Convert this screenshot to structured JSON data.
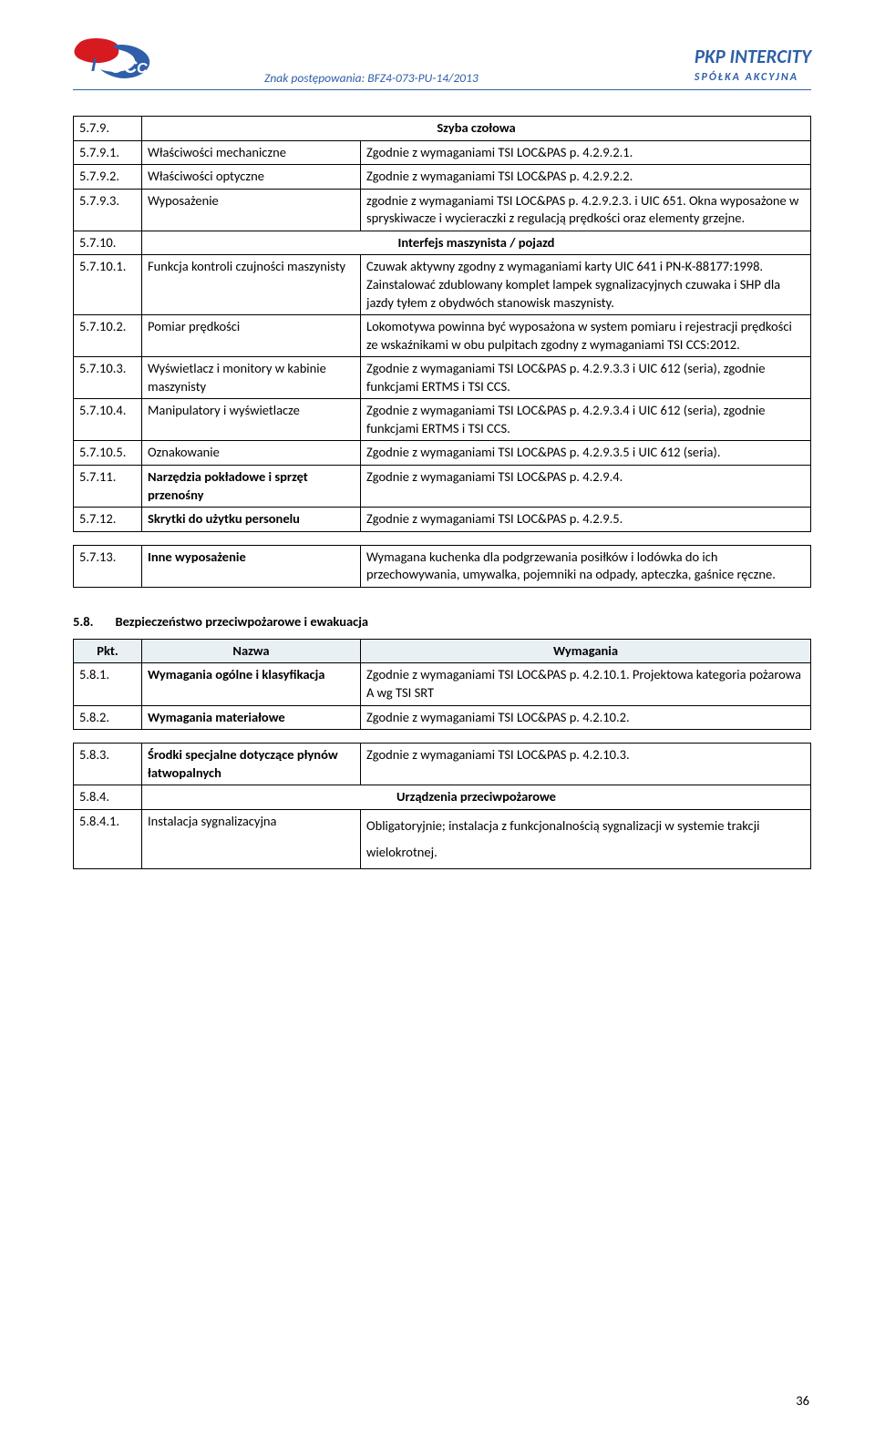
{
  "header": {
    "znak": "Znak postępowania: BFZ4-073-PU-14/2013",
    "brand_line1": "PKP INTERCITY",
    "brand_line2": "SPÓŁKA  AKCYJNA"
  },
  "logo_colors": {
    "red": "#d71920",
    "blue": "#2e5fa8"
  },
  "table1": [
    {
      "pkt": "5.7.9.",
      "title": "Szyba czołowa",
      "desc": "",
      "bold_title": true,
      "title_center": true,
      "span": true
    },
    {
      "pkt": "5.7.9.1.",
      "title": "Właściwości mechaniczne",
      "desc": "Zgodnie z wymaganiami TSI LOC&PAS p. 4.2.9.2.1."
    },
    {
      "pkt": "5.7.9.2.",
      "title": "Właściwości optyczne",
      "desc": "Zgodnie z wymaganiami TSI LOC&PAS p. 4.2.9.2.2."
    },
    {
      "pkt": "5.7.9.3.",
      "title": "Wyposażenie",
      "desc": "zgodnie z wymaganiami TSI LOC&PAS p. 4.2.9.2.3. i UIC 651. Okna wyposażone w spryskiwacze i wycieraczki z regulacją prędkości oraz elementy grzejne."
    },
    {
      "pkt": "5.7.10.",
      "title": "Interfejs maszynista / pojazd",
      "desc": "",
      "bold_title": true,
      "title_center": true,
      "span": true
    },
    {
      "pkt": "5.7.10.1.",
      "title": "Funkcja kontroli czujności maszynisty",
      "desc": "Czuwak aktywny zgodny z wymaganiami karty UIC 641 i PN-K-88177:1998.\nZainstalować zdublowany komplet lampek sygnalizacyjnych czuwaka i SHP dla jazdy tyłem z obydwóch stanowisk maszynisty."
    },
    {
      "pkt": "5.7.10.2.",
      "title": "Pomiar prędkości",
      "desc": "Lokomotywa powinna być wyposażona w system pomiaru i rejestracji prędkości ze wskaźnikami w obu pulpitach  zgodny z wymaganiami TSI CCS:2012."
    },
    {
      "pkt": "5.7.10.3.",
      "title": "Wyświetlacz i monitory w kabinie maszynisty",
      "desc": "Zgodnie z wymaganiami TSI LOC&PAS p. 4.2.9.3.3 i UIC 612 (seria), zgodnie funkcjami ERTMS i TSI CCS."
    },
    {
      "pkt": "5.7.10.4.",
      "title": "Manipulatory i wyświetlacze",
      "desc": "Zgodnie z wymaganiami TSI LOC&PAS p. 4.2.9.3.4 i UIC 612 (seria), zgodnie funkcjami ERTMS i TSI CCS."
    },
    {
      "pkt": "5.7.10.5.",
      "title": "Oznakowanie",
      "desc": "Zgodnie z wymaganiami TSI LOC&PAS p. 4.2.9.3.5 i UIC 612 (seria)."
    },
    {
      "pkt": "5.7.11.",
      "title": "Narzędzia pokładowe i sprzęt przenośny",
      "desc": "Zgodnie z wymaganiami TSI LOC&PAS p. 4.2.9.4.",
      "bold_title": true
    },
    {
      "pkt": "5.7.12.",
      "title": "Skrytki do użytku personelu",
      "desc": "Zgodnie z wymaganiami TSI LOC&PAS p. 4.2.9.5.",
      "bold_title": true
    },
    {
      "pkt": "5.7.13.",
      "title": "Inne wyposażenie",
      "desc": "Wymagana kuchenka dla podgrzewania posiłków i lodówka do ich przechowywania, umywalka, pojemniki na odpady, apteczka, gaśnice ręczne.",
      "bold_title": true,
      "spacer_before": true
    }
  ],
  "section2": {
    "num": "5.8.",
    "title": "Bezpieczeństwo przeciwpożarowe i ewakuacja"
  },
  "table2_header": {
    "c1": "Pkt.",
    "c2": "Nazwa",
    "c3": "Wymagania"
  },
  "table2": [
    {
      "pkt": "5.8.1.",
      "title": "Wymagania ogólne i klasyfikacja",
      "desc": "Zgodnie z wymaganiami TSI LOC&PAS p. 4.2.10.1. Projektowa kategoria pożarowa A wg TSI SRT",
      "bold_title": true
    },
    {
      "pkt": "5.8.2.",
      "title": "Wymagania materiałowe",
      "desc": "Zgodnie z wymaganiami TSI LOC&PAS p. 4.2.10.2.",
      "bold_title": true
    },
    {
      "pkt": "5.8.3.",
      "title": "Środki specjalne dotyczące płynów łatwopalnych",
      "desc": "Zgodnie z wymaganiami TSI LOC&PAS p. 4.2.10.3.",
      "bold_title": true,
      "spacer_before": true
    },
    {
      "pkt": "5.8.4.",
      "title": "Urządzenia przeciwpożarowe",
      "desc": "",
      "bold_title": true,
      "title_center": true,
      "span": true
    },
    {
      "pkt": "5.8.4.1.",
      "title": "Instalacja sygnalizacyjna",
      "desc": "Obligatoryjnie; instalacja z funkcjonalnością sygnalizacji w systemie trakcji wielokrotnej.",
      "desc_spaced": true
    }
  ],
  "page_num": "36"
}
